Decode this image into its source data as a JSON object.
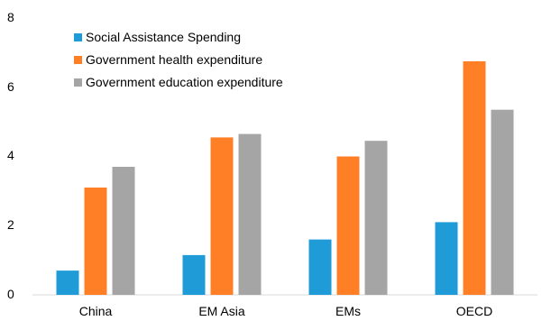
{
  "chart_data": {
    "type": "bar",
    "categories": [
      "China",
      "EM Asia",
      "EMs",
      "OECD"
    ],
    "series": [
      {
        "name": "Social Assistance Spending",
        "color": "#1f9bd7",
        "values": [
          0.7,
          1.15,
          1.6,
          2.1
        ]
      },
      {
        "name": "Government health expenditure",
        "color": "#ff7f27",
        "values": [
          3.1,
          4.55,
          4.0,
          6.75
        ]
      },
      {
        "name": "Government education expenditure",
        "color": "#a5a5a5",
        "values": [
          3.7,
          4.65,
          4.45,
          5.35
        ]
      }
    ],
    "ylim": [
      0,
      8
    ],
    "yticks": [
      "0",
      "2",
      "4",
      "6",
      "8"
    ],
    "grid": false,
    "legend_position": "top-left"
  }
}
